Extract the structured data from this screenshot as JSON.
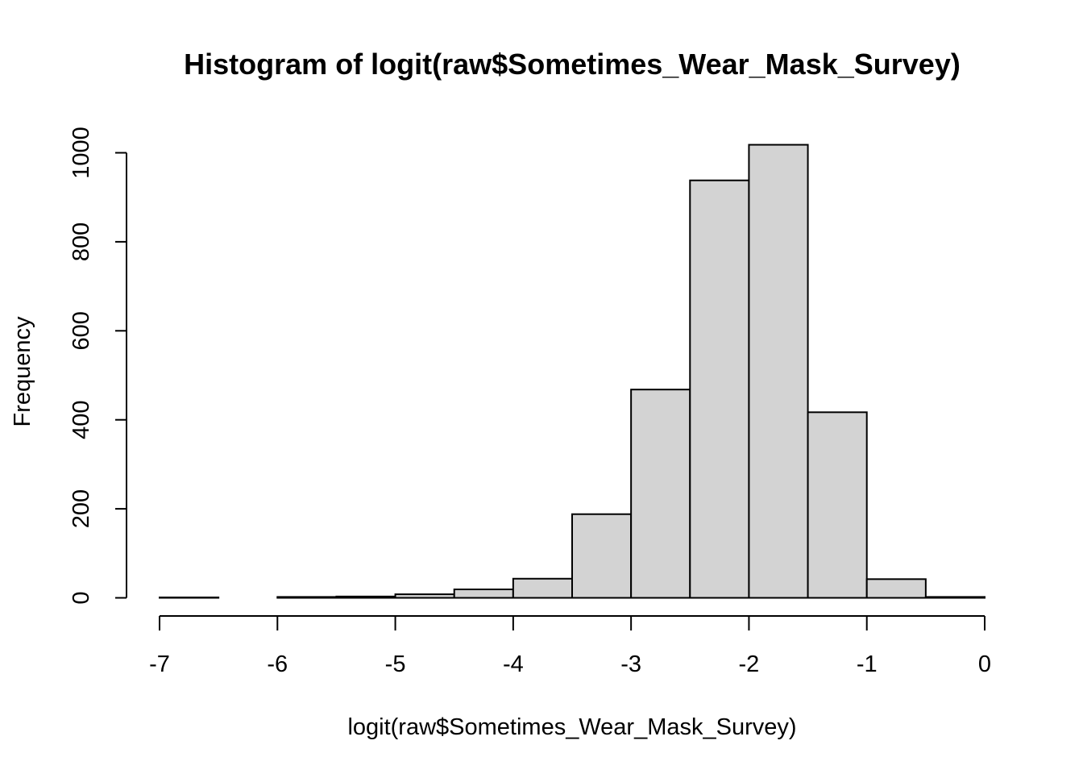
{
  "chart_data": {
    "type": "bar",
    "title": "Histogram of logit(raw$Sometimes_Wear_Mask_Survey)",
    "xlabel": "logit(raw$Sometimes_Wear_Mask_Survey)",
    "ylabel": "Frequency",
    "xlim": [
      -7,
      0
    ],
    "ylim": [
      0,
      1000
    ],
    "x_ticks": [
      -7,
      -6,
      -5,
      -4,
      -3,
      -2,
      -1,
      0
    ],
    "y_ticks": [
      0,
      200,
      400,
      600,
      800,
      1000
    ],
    "grid": false,
    "bar_fill": "#d3d3d3",
    "bar_edge": "#000000",
    "bins": [
      {
        "start": -7.0,
        "end": -6.5,
        "count": 1
      },
      {
        "start": -6.5,
        "end": -6.0,
        "count": 0
      },
      {
        "start": -6.0,
        "end": -5.5,
        "count": 2
      },
      {
        "start": -5.5,
        "end": -5.0,
        "count": 3
      },
      {
        "start": -5.0,
        "end": -4.5,
        "count": 8
      },
      {
        "start": -4.5,
        "end": -4.0,
        "count": 19
      },
      {
        "start": -4.0,
        "end": -3.5,
        "count": 43
      },
      {
        "start": -3.5,
        "end": -3.0,
        "count": 188
      },
      {
        "start": -3.0,
        "end": -2.5,
        "count": 468
      },
      {
        "start": -2.5,
        "end": -2.0,
        "count": 938
      },
      {
        "start": -2.0,
        "end": -1.5,
        "count": 1018
      },
      {
        "start": -1.5,
        "end": -1.0,
        "count": 417
      },
      {
        "start": -1.0,
        "end": -0.5,
        "count": 42
      },
      {
        "start": -0.5,
        "end": 0.0,
        "count": 2
      }
    ]
  }
}
